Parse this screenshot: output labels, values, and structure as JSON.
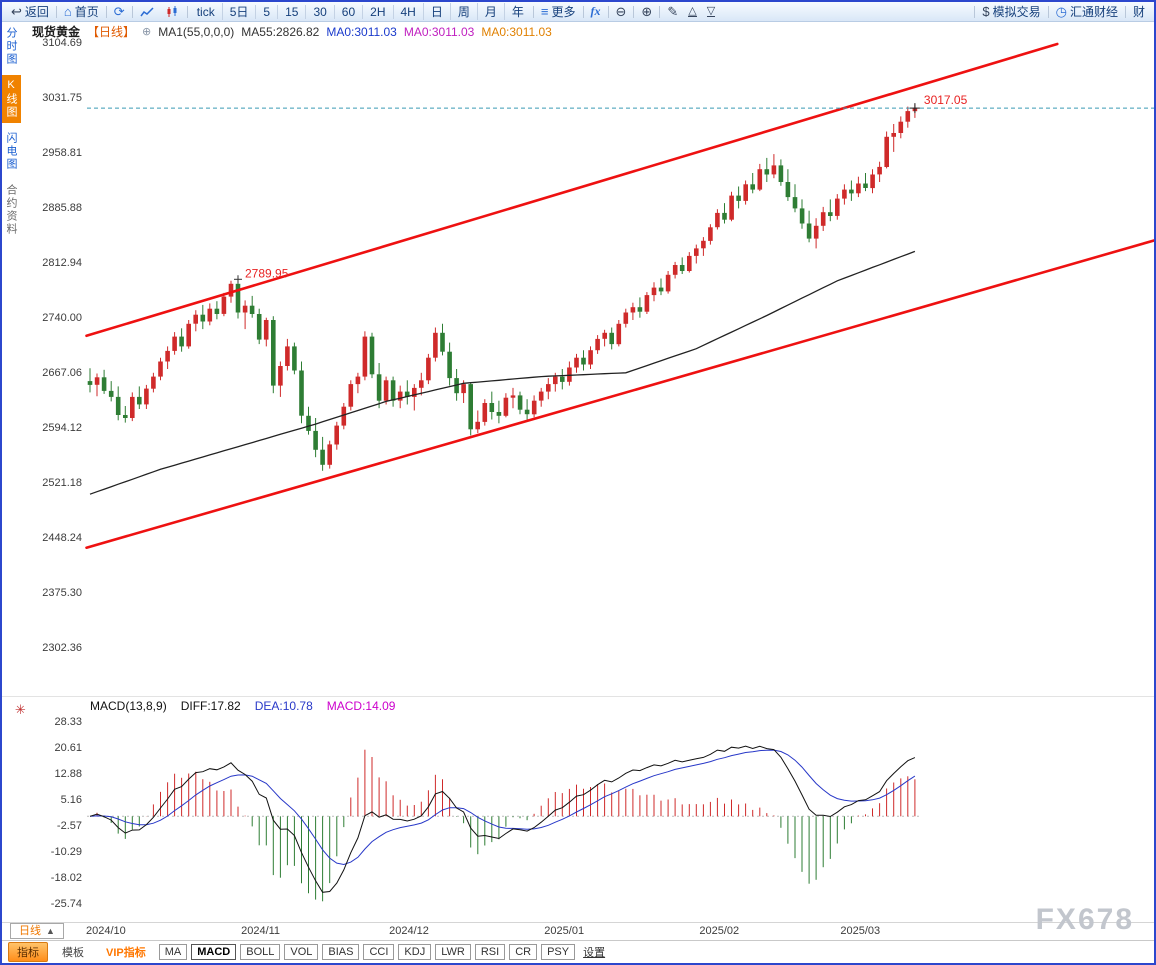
{
  "app": {
    "watermark": "FX678"
  },
  "toolbar": {
    "back": "返回",
    "home": "首页",
    "periods": [
      "tick",
      "5日",
      "5",
      "15",
      "30",
      "60",
      "2H",
      "4H",
      "日",
      "周",
      "月",
      "年"
    ],
    "more": "更多",
    "fx": "fx",
    "sim_trading": "模拟交易",
    "huitong": "汇通财经",
    "right_edge": "财"
  },
  "sidebar": {
    "items": [
      {
        "key": "time-share-chart",
        "label": "分时图",
        "active": false
      },
      {
        "key": "kline-chart",
        "label": "K线图",
        "active": true
      },
      {
        "key": "flash-chart",
        "label": "闪电图",
        "active": false
      },
      {
        "key": "contract-info",
        "label": "合约资料",
        "active": false
      }
    ]
  },
  "chart_header": {
    "symbol": "现货黄金",
    "period_tag": "【日线】",
    "ma_setting": "MA1(55,0,0,0)",
    "ma55": "MA55:2826.82",
    "ma0_blue": "MA0:3011.03",
    "ma0_magenta": "MA0:3011.03",
    "ma0_orange": "MA0:3011.03"
  },
  "macd_header": {
    "title": "MACD(13,8,9)",
    "diff": "DIFF:17.82",
    "dea": "DEA:10.78",
    "macd": "MACD:14.09"
  },
  "bottom": {
    "period_selector": "日线",
    "period_arrow": "▲",
    "tabs": [
      {
        "key": "indicators",
        "label": "指标",
        "style": "primary"
      },
      {
        "key": "templates",
        "label": "模板",
        "style": "plain"
      },
      {
        "key": "vip-indicators",
        "label": "VIP指标",
        "style": "vip"
      }
    ],
    "indicators": [
      {
        "label": "MA",
        "active": false
      },
      {
        "label": "MACD",
        "active": true
      },
      {
        "label": "BOLL",
        "active": false
      },
      {
        "label": "VOL",
        "active": false
      },
      {
        "label": "BIAS",
        "active": false
      },
      {
        "label": "CCI",
        "active": false
      },
      {
        "label": "KDJ",
        "active": false
      },
      {
        "label": "LWR",
        "active": false
      },
      {
        "label": "RSI",
        "active": false
      },
      {
        "label": "CR",
        "active": false
      },
      {
        "label": "PSY",
        "active": false
      }
    ],
    "settings": "设置"
  },
  "chart_data": {
    "type": "candlestick",
    "title": "现货黄金 日线",
    "y_axis": [
      3104.69,
      3031.75,
      2958.81,
      2885.88,
      2812.94,
      2740.0,
      2667.06,
      2594.12,
      2521.18,
      2448.24,
      2375.3,
      2302.36
    ],
    "x_labels": [
      {
        "label": "2024/10",
        "index": 0
      },
      {
        "label": "2024/11",
        "index": 22
      },
      {
        "label": "2024/12",
        "index": 43
      },
      {
        "label": "2025/01",
        "index": 65
      },
      {
        "label": "2025/02",
        "index": 87
      },
      {
        "label": "2025/03",
        "index": 107
      }
    ],
    "current_price": 3017.05,
    "current_price_label": "3017.05",
    "peak_price": 2789.95,
    "peak_label": "2789.95",
    "peak_index": 21,
    "ma55_points": [
      [
        0,
        2505
      ],
      [
        10,
        2538
      ],
      [
        21,
        2568
      ],
      [
        32,
        2598
      ],
      [
        42,
        2628
      ],
      [
        53,
        2652
      ],
      [
        64,
        2661
      ],
      [
        76,
        2666
      ],
      [
        86,
        2698
      ],
      [
        96,
        2742
      ],
      [
        106,
        2788
      ],
      [
        117,
        2827
      ]
    ],
    "channel_upper": {
      "i1": -0.5,
      "p1": 2715,
      "i2": 137.2,
      "p2": 3102
    },
    "channel_lower": {
      "i1": -0.5,
      "p1": 2434,
      "i2": 151.5,
      "p2": 2843
    },
    "macd_axis": [
      28.33,
      20.61,
      12.88,
      5.16,
      -2.57,
      -10.29,
      -18.02,
      -25.74
    ],
    "macd_params": "13,8,9",
    "colors": {
      "up": "#cf2a2a",
      "down": "#2e7d34",
      "channel": "#ee1111",
      "ma": "#222222",
      "diff": "#111111",
      "dea": "#2838c8",
      "price_line": "#3a9ab5",
      "price_label": "#e82222"
    },
    "candles": [
      [
        2655,
        2672,
        2640,
        2650
      ],
      [
        2650,
        2665,
        2635,
        2660
      ],
      [
        2660,
        2670,
        2638,
        2642
      ],
      [
        2642,
        2655,
        2628,
        2634
      ],
      [
        2634,
        2648,
        2603,
        2610
      ],
      [
        2610,
        2622,
        2600,
        2606
      ],
      [
        2606,
        2640,
        2602,
        2634
      ],
      [
        2634,
        2648,
        2618,
        2624
      ],
      [
        2624,
        2650,
        2618,
        2645
      ],
      [
        2645,
        2666,
        2640,
        2661
      ],
      [
        2661,
        2686,
        2656,
        2681
      ],
      [
        2681,
        2701,
        2671,
        2695
      ],
      [
        2695,
        2720,
        2690,
        2714
      ],
      [
        2714,
        2725,
        2694,
        2701
      ],
      [
        2701,
        2736,
        2698,
        2731
      ],
      [
        2731,
        2749,
        2721,
        2743
      ],
      [
        2743,
        2756,
        2724,
        2734
      ],
      [
        2734,
        2758,
        2729,
        2751
      ],
      [
        2751,
        2761,
        2737,
        2744
      ],
      [
        2744,
        2772,
        2741,
        2767
      ],
      [
        2767,
        2788,
        2759,
        2784
      ],
      [
        2784,
        2789.95,
        2738,
        2746
      ],
      [
        2746,
        2762,
        2724,
        2755
      ],
      [
        2755,
        2768,
        2739,
        2744
      ],
      [
        2744,
        2751,
        2704,
        2710
      ],
      [
        2710,
        2739,
        2701,
        2736
      ],
      [
        2736,
        2741,
        2639,
        2649
      ],
      [
        2649,
        2681,
        2634,
        2675
      ],
      [
        2675,
        2711,
        2669,
        2701
      ],
      [
        2701,
        2706,
        2664,
        2669
      ],
      [
        2669,
        2681,
        2599,
        2609
      ],
      [
        2609,
        2621,
        2584,
        2589
      ],
      [
        2589,
        2606,
        2554,
        2564
      ],
      [
        2564,
        2581,
        2536,
        2544
      ],
      [
        2544,
        2576,
        2539,
        2571
      ],
      [
        2571,
        2601,
        2564,
        2596
      ],
      [
        2596,
        2626,
        2591,
        2621
      ],
      [
        2621,
        2656,
        2616,
        2651
      ],
      [
        2651,
        2666,
        2639,
        2661
      ],
      [
        2661,
        2721,
        2656,
        2714
      ],
      [
        2714,
        2719,
        2659,
        2664
      ],
      [
        2664,
        2679,
        2619,
        2629
      ],
      [
        2629,
        2661,
        2624,
        2656
      ],
      [
        2656,
        2661,
        2621,
        2629
      ],
      [
        2629,
        2649,
        2619,
        2641
      ],
      [
        2641,
        2656,
        2624,
        2634
      ],
      [
        2634,
        2651,
        2616,
        2646
      ],
      [
        2646,
        2666,
        2636,
        2656
      ],
      [
        2656,
        2691,
        2651,
        2686
      ],
      [
        2686,
        2726,
        2681,
        2719
      ],
      [
        2719,
        2731,
        2689,
        2694
      ],
      [
        2694,
        2706,
        2649,
        2659
      ],
      [
        2659,
        2671,
        2629,
        2639
      ],
      [
        2639,
        2656,
        2626,
        2651
      ],
      [
        2651,
        2653,
        2583,
        2591
      ],
      [
        2591,
        2616,
        2586,
        2601
      ],
      [
        2601,
        2631,
        2596,
        2626
      ],
      [
        2626,
        2641,
        2604,
        2614
      ],
      [
        2614,
        2629,
        2599,
        2609
      ],
      [
        2609,
        2639,
        2607,
        2633
      ],
      [
        2633,
        2646,
        2619,
        2636
      ],
      [
        2636,
        2641,
        2611,
        2617
      ],
      [
        2617,
        2631,
        2604,
        2611
      ],
      [
        2611,
        2636,
        2607,
        2629
      ],
      [
        2629,
        2646,
        2621,
        2641
      ],
      [
        2641,
        2659,
        2631,
        2651
      ],
      [
        2651,
        2666,
        2641,
        2661
      ],
      [
        2661,
        2671,
        2644,
        2654
      ],
      [
        2654,
        2681,
        2649,
        2673
      ],
      [
        2673,
        2691,
        2666,
        2686
      ],
      [
        2686,
        2696,
        2669,
        2677
      ],
      [
        2677,
        2701,
        2671,
        2696
      ],
      [
        2696,
        2716,
        2691,
        2711
      ],
      [
        2711,
        2723,
        2701,
        2719
      ],
      [
        2719,
        2726,
        2697,
        2704
      ],
      [
        2704,
        2736,
        2701,
        2731
      ],
      [
        2731,
        2751,
        2726,
        2746
      ],
      [
        2746,
        2759,
        2736,
        2753
      ],
      [
        2753,
        2766,
        2739,
        2747
      ],
      [
        2747,
        2773,
        2744,
        2769
      ],
      [
        2769,
        2786,
        2761,
        2779
      ],
      [
        2779,
        2791,
        2769,
        2774
      ],
      [
        2774,
        2801,
        2771,
        2796
      ],
      [
        2796,
        2813,
        2791,
        2809
      ],
      [
        2809,
        2819,
        2797,
        2801
      ],
      [
        2801,
        2826,
        2799,
        2821
      ],
      [
        2821,
        2836,
        2811,
        2831
      ],
      [
        2831,
        2846,
        2821,
        2841
      ],
      [
        2841,
        2863,
        2836,
        2859
      ],
      [
        2859,
        2883,
        2856,
        2878
      ],
      [
        2878,
        2891,
        2864,
        2869
      ],
      [
        2869,
        2906,
        2867,
        2901
      ],
      [
        2901,
        2913,
        2884,
        2894
      ],
      [
        2894,
        2921,
        2889,
        2916
      ],
      [
        2916,
        2931,
        2904,
        2909
      ],
      [
        2909,
        2943,
        2907,
        2936
      ],
      [
        2936,
        2951,
        2919,
        2929
      ],
      [
        2929,
        2956,
        2924,
        2941
      ],
      [
        2941,
        2949,
        2914,
        2919
      ],
      [
        2919,
        2936,
        2894,
        2899
      ],
      [
        2899,
        2916,
        2879,
        2884
      ],
      [
        2884,
        2896,
        2857,
        2864
      ],
      [
        2864,
        2881,
        2839,
        2844
      ],
      [
        2844,
        2871,
        2831,
        2861
      ],
      [
        2861,
        2886,
        2854,
        2879
      ],
      [
        2879,
        2896,
        2867,
        2874
      ],
      [
        2874,
        2903,
        2869,
        2897
      ],
      [
        2897,
        2916,
        2889,
        2909
      ],
      [
        2909,
        2921,
        2894,
        2904
      ],
      [
        2904,
        2926,
        2899,
        2917
      ],
      [
        2917,
        2931,
        2907,
        2911
      ],
      [
        2911,
        2936,
        2904,
        2929
      ],
      [
        2929,
        2946,
        2919,
        2939
      ],
      [
        2939,
        2986,
        2937,
        2979
      ],
      [
        2979,
        2996,
        2959,
        2984
      ],
      [
        2984,
        3006,
        2977,
        2999
      ],
      [
        2999,
        3019,
        2991,
        3013
      ],
      [
        3013,
        3022,
        3004,
        3017.05
      ]
    ]
  }
}
